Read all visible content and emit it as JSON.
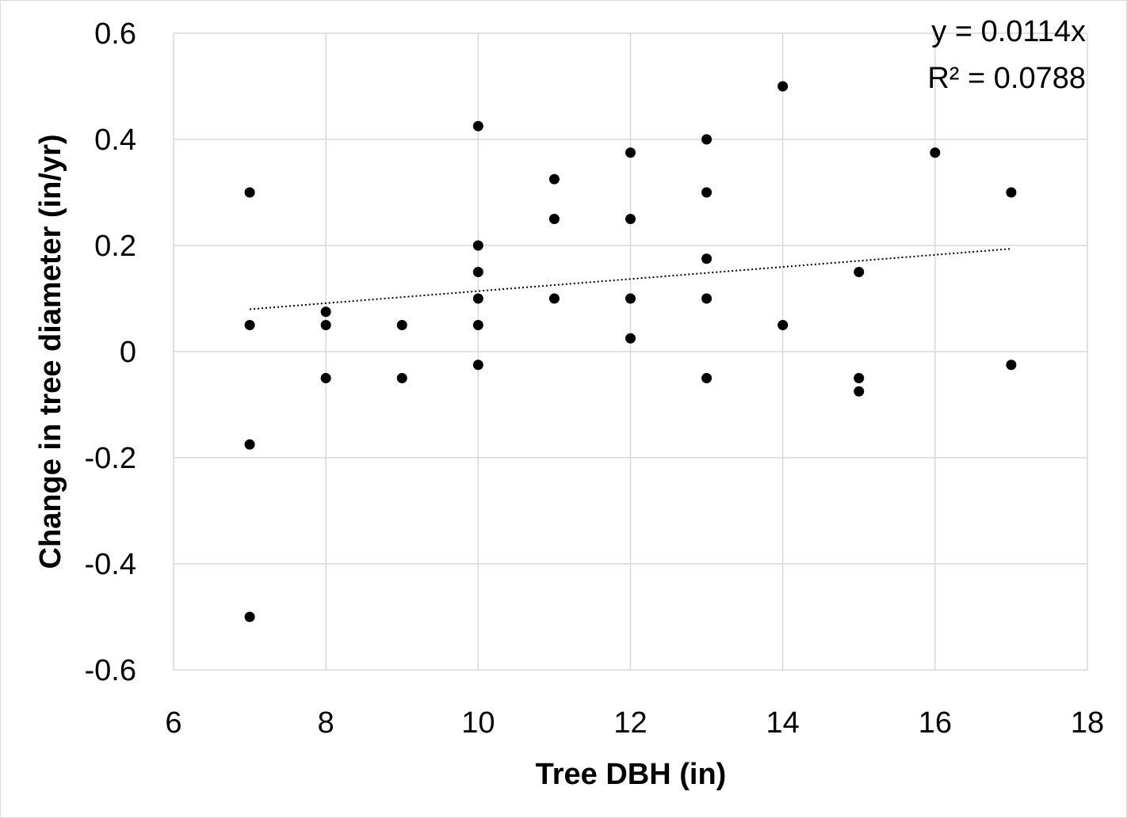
{
  "chart_data": {
    "type": "scatter",
    "xlabel": "Tree DBH (in)",
    "ylabel": "Change in tree diameter (in/yr)",
    "xlim": [
      6,
      18
    ],
    "ylim": [
      -0.6,
      0.6
    ],
    "xticks": [
      6,
      8,
      10,
      12,
      14,
      16,
      18
    ],
    "yticks": [
      -0.6,
      -0.4,
      -0.2,
      0,
      0.2,
      0.4,
      0.6
    ],
    "ytick_labels": [
      "-0.6",
      "-0.4",
      "-0.2",
      "0",
      "0.2",
      "0.4",
      "0.6"
    ],
    "grid": true,
    "marker_color": "#000000",
    "grid_color": "#d9d9d9",
    "points": [
      [
        7,
        0.3
      ],
      [
        7,
        0.05
      ],
      [
        7,
        -0.175
      ],
      [
        7,
        -0.5
      ],
      [
        8,
        0.075
      ],
      [
        8,
        0.05
      ],
      [
        8,
        -0.05
      ],
      [
        9,
        0.05
      ],
      [
        9,
        -0.05
      ],
      [
        10,
        0.425
      ],
      [
        10,
        0.2
      ],
      [
        10,
        0.15
      ],
      [
        10,
        0.1
      ],
      [
        10,
        0.05
      ],
      [
        10,
        -0.025
      ],
      [
        11,
        0.325
      ],
      [
        11,
        0.25
      ],
      [
        11,
        0.1
      ],
      [
        12,
        0.375
      ],
      [
        12,
        0.25
      ],
      [
        12,
        0.1
      ],
      [
        12,
        0.025
      ],
      [
        13,
        0.4
      ],
      [
        13,
        0.3
      ],
      [
        13,
        0.175
      ],
      [
        13,
        0.1
      ],
      [
        13,
        -0.05
      ],
      [
        14,
        0.5
      ],
      [
        14,
        0.05
      ],
      [
        15,
        0.15
      ],
      [
        15,
        -0.05
      ],
      [
        15,
        -0.075
      ],
      [
        16,
        0.375
      ],
      [
        17,
        0.3
      ],
      [
        17,
        -0.025
      ]
    ],
    "trendline": {
      "type": "linear-through-origin",
      "slope": 0.0114,
      "x_range": [
        7,
        17
      ],
      "style": "dotted",
      "equation": "y = 0.0114x",
      "r_squared": "R² = 0.0788"
    }
  }
}
